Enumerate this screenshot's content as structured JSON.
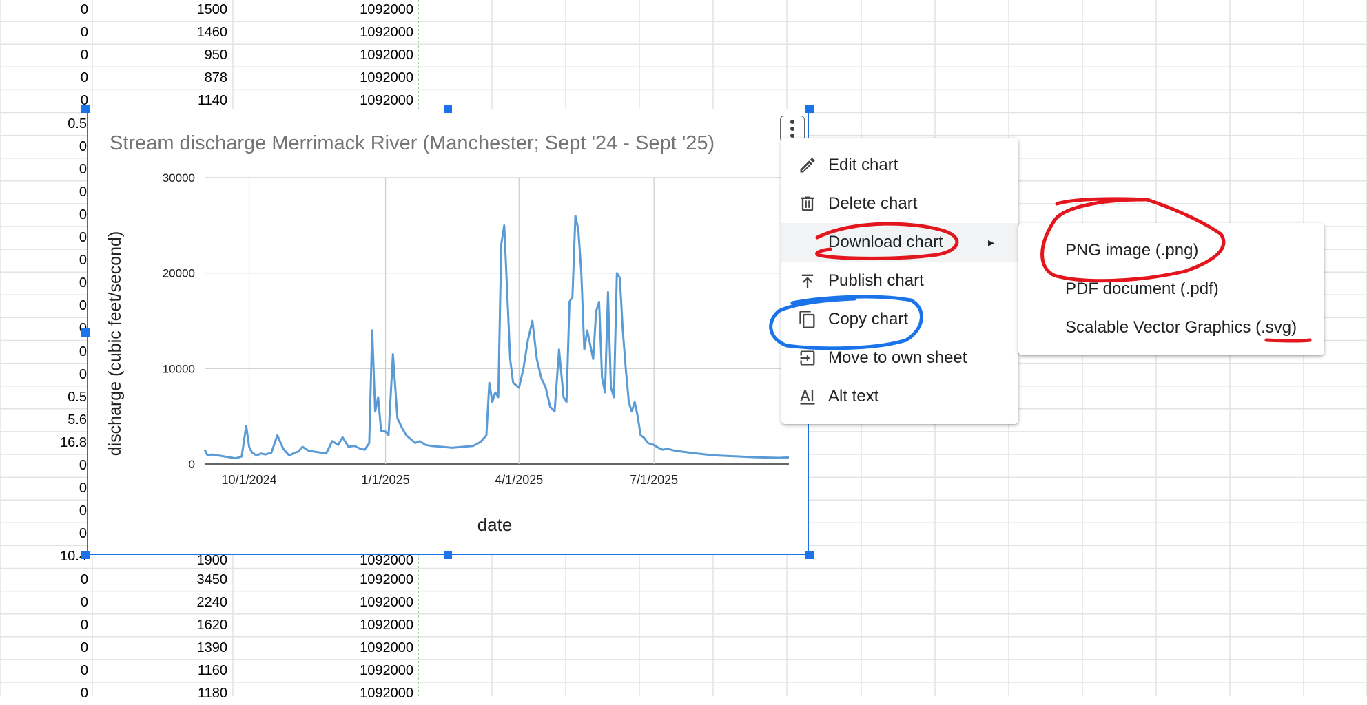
{
  "sheet": {
    "rows_top": [
      {
        "a": "0",
        "b": "1500",
        "c": "1092000"
      },
      {
        "a": "0",
        "b": "1460",
        "c": "1092000"
      },
      {
        "a": "0",
        "b": "950",
        "c": "1092000"
      },
      {
        "a": "0",
        "b": "878",
        "c": "1092000"
      },
      {
        "a": "0",
        "b": "1140",
        "c": "1092000"
      }
    ],
    "col_a_behind_chart": [
      "0.5",
      "0",
      "0",
      "0",
      "0",
      "0",
      "0",
      "0",
      "0",
      "0",
      "0",
      "0",
      "0.5",
      "5.6",
      "16.8",
      "0",
      "0",
      "0",
      "0",
      "10.4"
    ],
    "partial_row": {
      "b": "1900",
      "c": "1092000"
    },
    "rows_bottom": [
      {
        "a": "0",
        "b": "3450",
        "c": "1092000"
      },
      {
        "a": "0",
        "b": "2240",
        "c": "1092000"
      },
      {
        "a": "0",
        "b": "1620",
        "c": "1092000"
      },
      {
        "a": "0",
        "b": "1390",
        "c": "1092000"
      },
      {
        "a": "0",
        "b": "1160",
        "c": "1092000"
      },
      {
        "a": "0",
        "b": "1180",
        "c": "1092000"
      }
    ]
  },
  "chart_data": {
    "type": "line",
    "title": "Stream discharge Merrimack River (Manchester; Sept '24 - Sept '25)",
    "xlabel": "date",
    "ylabel": "discharge (cubic feet/second)",
    "ylim": [
      0,
      30000
    ],
    "yticks": [
      "0",
      "10000",
      "20000",
      "30000"
    ],
    "xticks": [
      "10/1/2024",
      "1/1/2025",
      "4/1/2025",
      "7/1/2025"
    ],
    "xlim": [
      "2024-09-01",
      "2025-09-30"
    ],
    "grid": true,
    "color": "#5b9bd5",
    "series": [
      {
        "x": [
          "2024-09-01",
          "2024-09-03",
          "2024-09-06",
          "2024-09-10",
          "2024-09-14",
          "2024-09-18",
          "2024-09-22",
          "2024-09-26",
          "2024-09-29",
          "2024-10-01",
          "2024-10-03",
          "2024-10-06",
          "2024-10-09",
          "2024-10-12",
          "2024-10-16",
          "2024-10-20",
          "2024-10-24",
          "2024-10-28",
          "2024-11-01",
          "2024-11-03",
          "2024-11-06",
          "2024-11-10",
          "2024-11-14",
          "2024-11-18",
          "2024-11-22",
          "2024-11-26",
          "2024-11-30",
          "2024-12-03",
          "2024-12-07",
          "2024-12-11",
          "2024-12-15",
          "2024-12-18",
          "2024-12-21",
          "2024-12-23",
          "2024-12-25",
          "2024-12-27",
          "2024-12-29",
          "2025-01-01",
          "2025-01-03",
          "2025-01-06",
          "2025-01-09",
          "2025-01-12",
          "2025-01-15",
          "2025-01-18",
          "2025-01-21",
          "2025-01-24",
          "2025-01-28",
          "2025-02-01",
          "2025-02-08",
          "2025-02-15",
          "2025-02-22",
          "2025-03-01",
          "2025-03-06",
          "2025-03-10",
          "2025-03-12",
          "2025-03-14",
          "2025-03-16",
          "2025-03-18",
          "2025-03-20",
          "2025-03-22",
          "2025-03-24",
          "2025-03-26",
          "2025-03-28",
          "2025-04-01",
          "2025-04-04",
          "2025-04-07",
          "2025-04-10",
          "2025-04-13",
          "2025-04-16",
          "2025-04-19",
          "2025-04-22",
          "2025-04-25",
          "2025-04-28",
          "2025-05-01",
          "2025-05-03",
          "2025-05-05",
          "2025-05-07",
          "2025-05-09",
          "2025-05-11",
          "2025-05-13",
          "2025-05-15",
          "2025-05-17",
          "2025-05-19",
          "2025-05-21",
          "2025-05-23",
          "2025-05-25",
          "2025-05-27",
          "2025-05-29",
          "2025-05-31",
          "2025-06-02",
          "2025-06-04",
          "2025-06-06",
          "2025-06-08",
          "2025-06-10",
          "2025-06-12",
          "2025-06-14",
          "2025-06-16",
          "2025-06-18",
          "2025-06-20",
          "2025-06-22",
          "2025-06-24",
          "2025-06-27",
          "2025-07-01",
          "2025-07-04",
          "2025-07-07",
          "2025-07-10",
          "2025-07-15",
          "2025-07-20",
          "2025-07-25",
          "2025-07-30",
          "2025-08-05",
          "2025-08-12",
          "2025-08-19",
          "2025-08-26",
          "2025-09-02",
          "2025-09-09",
          "2025-09-16",
          "2025-09-23",
          "2025-09-30"
        ],
        "y": [
          1500,
          900,
          1000,
          900,
          800,
          700,
          600,
          800,
          4000,
          1800,
          1200,
          900,
          1100,
          1000,
          1200,
          3000,
          1600,
          900,
          1200,
          1300,
          1800,
          1400,
          1300,
          1200,
          1100,
          2400,
          2000,
          2800,
          1800,
          1900,
          1600,
          1500,
          2200,
          14000,
          5500,
          7000,
          3500,
          3400,
          3000,
          11500,
          4800,
          3800,
          3000,
          2600,
          2200,
          2400,
          2000,
          1900,
          1800,
          1700,
          1800,
          1900,
          2300,
          3000,
          8500,
          6500,
          7500,
          7000,
          23000,
          25000,
          18000,
          11000,
          8500,
          8000,
          10000,
          13000,
          15000,
          11000,
          9000,
          8000,
          6000,
          5500,
          12000,
          7000,
          6500,
          17000,
          17500,
          26000,
          24500,
          20000,
          12000,
          14000,
          12500,
          11000,
          16000,
          17000,
          9000,
          7500,
          18000,
          8000,
          7000,
          20000,
          19500,
          14000,
          10000,
          6500,
          5500,
          6500,
          5000,
          3000,
          2800,
          2200,
          2000,
          1700,
          1500,
          1600,
          1400,
          1300,
          1200,
          1100,
          1000,
          900,
          850,
          800,
          750,
          700,
          680,
          650,
          700
        ]
      }
    ]
  },
  "chart_menu": {
    "items": [
      {
        "label": "Edit chart",
        "icon": "pencil-icon"
      },
      {
        "label": "Delete chart",
        "icon": "trash-icon"
      },
      {
        "label": "Download chart",
        "icon": ""
      },
      {
        "label": "Publish chart",
        "icon": "upload-icon"
      },
      {
        "label": "Copy chart",
        "icon": "copy-icon"
      },
      {
        "label": "Move to own sheet",
        "icon": "move-sheet-icon"
      },
      {
        "label": "Alt text",
        "icon": "alt-text-icon"
      }
    ],
    "submenu_arrow": "▸"
  },
  "download_submenu": {
    "items": [
      {
        "label": "PNG image (.png)"
      },
      {
        "label": "PDF document (.pdf)"
      },
      {
        "label": "Scalable Vector Graphics (.svg)"
      }
    ]
  },
  "annotations": {
    "red": "#e3161e",
    "blue": "#1a73e8"
  }
}
